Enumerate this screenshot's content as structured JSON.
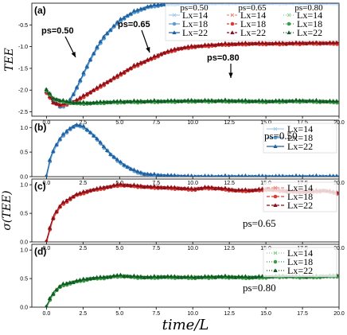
{
  "chart_data": {
    "type": "line",
    "xlabel": "time/L",
    "x_ticks": [
      "0.0",
      "2.5",
      "5.0",
      "7.5",
      "10.0",
      "12.5",
      "15.0",
      "17.5",
      "20.0"
    ],
    "xlim": [
      -1,
      20
    ],
    "colors": {
      "ps050": [
        "#a7cde6",
        "#5f9fd0",
        "#1f5fa0"
      ],
      "ps065": [
        "#f08a83",
        "#d83a32",
        "#8b0f18"
      ],
      "ps080": [
        "#8fcf8f",
        "#3b9a48",
        "#0f5a22"
      ]
    },
    "legend_labels": [
      "Lx=14",
      "Lx=18",
      "Lx=22"
    ],
    "panels": [
      {
        "letter": "(a)",
        "ylabel": "TEE",
        "ylim": [
          -2.6,
          0.0
        ],
        "y_ticks": [
          "-0.5",
          "-1.0",
          "-1.5",
          "-2.0",
          "-2.5"
        ],
        "legend_headers": [
          "ps=0.50",
          "ps=0.65",
          "ps=0.80"
        ],
        "annotations": [
          "ps=0.50",
          "ps=0.65",
          "ps=0.80"
        ],
        "series": [
          {
            "group": "ps050",
            "x": [
              0,
              0.5,
              1.0,
              1.5,
              2.0,
              2.5,
              3.0,
              3.5,
              4.0,
              5.0,
              6.0,
              7.0,
              8.0,
              10.0,
              12.0,
              15.0,
              20.0
            ],
            "y": [
              -2.0,
              -2.25,
              -2.4,
              -2.3,
              -2.0,
              -1.65,
              -1.3,
              -1.0,
              -0.75,
              -0.4,
              -0.2,
              -0.08,
              -0.03,
              0.0,
              0.0,
              0.0,
              0.0
            ]
          },
          {
            "group": "ps065",
            "x": [
              0,
              0.5,
              1.0,
              2.0,
              3.0,
              4.0,
              5.0,
              6.0,
              7.0,
              8.0,
              9.0,
              10.0,
              12.0,
              14.0,
              16.0,
              18.0,
              20.0
            ],
            "y": [
              -2.05,
              -2.3,
              -2.35,
              -2.25,
              -2.05,
              -1.85,
              -1.65,
              -1.45,
              -1.3,
              -1.15,
              -1.05,
              -1.0,
              -0.95,
              -0.93,
              -0.93,
              -0.92,
              -0.92
            ]
          },
          {
            "group": "ps080",
            "x": [
              0,
              0.5,
              1.0,
              2.0,
              3.0,
              4.0,
              5.0,
              7.5,
              10.0,
              12.5,
              15.0,
              17.5,
              20.0
            ],
            "y": [
              -2.0,
              -2.2,
              -2.25,
              -2.3,
              -2.3,
              -2.28,
              -2.27,
              -2.26,
              -2.25,
              -2.25,
              -2.26,
              -2.25,
              -2.27
            ]
          }
        ]
      },
      {
        "letter": "(b)",
        "ylabel": "",
        "ylim": [
          0,
          1.15
        ],
        "y_ticks": [
          "1.0",
          "0.5",
          "0.0"
        ],
        "annotation": "ps=0.50",
        "series": [
          {
            "group": "ps050",
            "x": [
              0,
              0.25,
              0.5,
              1.0,
              1.5,
              2.0,
              2.5,
              3.0,
              3.5,
              4.0,
              4.5,
              5.0,
              5.5,
              6.0,
              6.5,
              7.0,
              8.0,
              9.0,
              10.0,
              12.0,
              15.0,
              20.0
            ],
            "y": [
              0.0,
              0.35,
              0.55,
              0.8,
              0.95,
              1.05,
              1.02,
              0.9,
              0.75,
              0.58,
              0.42,
              0.3,
              0.2,
              0.12,
              0.07,
              0.04,
              0.02,
              0.01,
              0.0,
              0.0,
              0.0,
              0.0
            ]
          }
        ]
      },
      {
        "letter": "(c)",
        "ylabel": "σ(TEE)",
        "ylim": [
          0,
          1.1
        ],
        "y_ticks": [
          "1.0",
          "0.5",
          "0.0"
        ],
        "annotation": "ps=0.65",
        "series": [
          {
            "group": "ps065",
            "x": [
              0,
              0.25,
              0.5,
              1.0,
              2.0,
              3.0,
              4.0,
              5.0,
              6.0,
              7.0,
              8.0,
              9.0,
              10.0,
              11.0,
              12.0,
              13.0,
              14.0,
              15.0,
              16.0,
              17.0,
              18.0,
              19.0,
              20.0
            ],
            "y": [
              0.0,
              0.25,
              0.45,
              0.65,
              0.82,
              0.9,
              0.95,
              1.0,
              0.98,
              0.96,
              0.95,
              0.94,
              0.92,
              0.95,
              0.93,
              0.9,
              0.9,
              0.92,
              0.9,
              0.88,
              0.88,
              0.9,
              0.85
            ]
          }
        ]
      },
      {
        "letter": "(d)",
        "ylabel": "",
        "ylim": [
          0,
          1.1
        ],
        "y_ticks": [
          "1.0",
          "0.5",
          "0.0"
        ],
        "annotation": "ps=0.80",
        "series": [
          {
            "group": "ps080",
            "x": [
              0,
              0.25,
              0.5,
              1.0,
              2.0,
              3.0,
              4.0,
              5.0,
              6.0,
              7.0,
              8.0,
              10.0,
              12.0,
              14.0,
              16.0,
              18.0,
              20.0
            ],
            "y": [
              0.0,
              0.15,
              0.25,
              0.38,
              0.45,
              0.5,
              0.52,
              0.55,
              0.53,
              0.52,
              0.53,
              0.52,
              0.53,
              0.52,
              0.54,
              0.53,
              0.55
            ]
          }
        ]
      }
    ]
  }
}
